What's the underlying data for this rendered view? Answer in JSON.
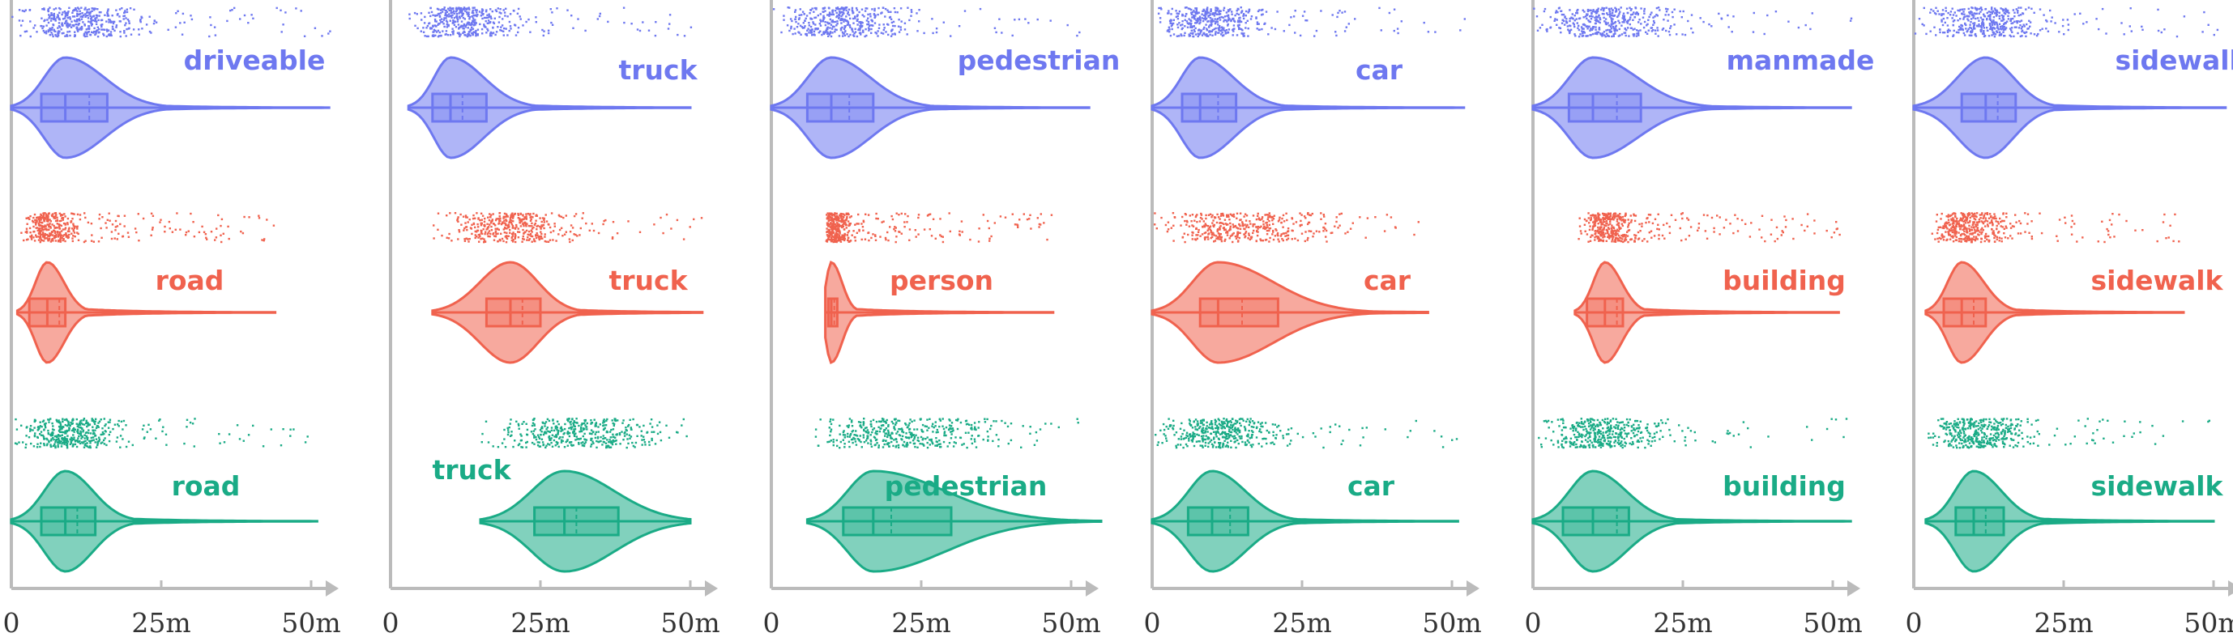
{
  "colors": {
    "row1": "#6e78f0",
    "row2": "#f0624e",
    "row3": "#1aab86",
    "axis": "#bbbbbb",
    "tick_text": "#333333"
  },
  "x_tick_labels": [
    "0",
    "25m",
    "50m"
  ],
  "chart_data": [
    {
      "type": "violin",
      "x_range": [
        0,
        50
      ],
      "x_ticks": [
        0,
        25,
        50
      ],
      "series": [
        {
          "name": "driveable",
          "min": 0,
          "q1": 5,
          "median": 9,
          "mean": 13,
          "q3": 16,
          "max": 53,
          "row": 1
        },
        {
          "name": "road",
          "min": 1,
          "q1": 3,
          "median": 6,
          "mean": 8,
          "q3": 9,
          "max": 44,
          "row": 2
        },
        {
          "name": "road",
          "min": 0,
          "q1": 5,
          "median": 9,
          "mean": 11,
          "q3": 14,
          "max": 51,
          "row": 3
        }
      ]
    },
    {
      "type": "violin",
      "x_range": [
        0,
        50
      ],
      "x_ticks": [
        0,
        25,
        50
      ],
      "series": [
        {
          "name": "truck",
          "min": 3,
          "q1": 7,
          "median": 10,
          "mean": 12,
          "q3": 16,
          "max": 50,
          "row": 1
        },
        {
          "name": "truck",
          "min": 7,
          "q1": 16,
          "median": 20,
          "mean": 22,
          "q3": 25,
          "max": 52,
          "row": 2
        },
        {
          "name": "truck",
          "min": 15,
          "q1": 24,
          "median": 29,
          "mean": 31,
          "q3": 38,
          "max": 50,
          "row": 3
        }
      ]
    },
    {
      "type": "violin",
      "x_range": [
        0,
        50
      ],
      "x_ticks": [
        0,
        25,
        50
      ],
      "series": [
        {
          "name": "pedestrian",
          "min": 0,
          "q1": 6,
          "median": 10,
          "mean": 13,
          "q3": 17,
          "max": 53,
          "row": 1
        },
        {
          "name": "person",
          "min": 9,
          "q1": 9.5,
          "median": 10,
          "mean": 10.5,
          "q3": 11,
          "max": 47,
          "row": 2
        },
        {
          "name": "pedestrian",
          "min": 6,
          "q1": 12,
          "median": 17,
          "mean": 20,
          "q3": 30,
          "max": 55,
          "row": 3
        }
      ]
    },
    {
      "type": "violin",
      "x_range": [
        0,
        50
      ],
      "x_ticks": [
        0,
        25,
        50
      ],
      "series": [
        {
          "name": "car",
          "min": 0,
          "q1": 5,
          "median": 8,
          "mean": 11,
          "q3": 14,
          "max": 52,
          "row": 1
        },
        {
          "name": "car",
          "min": 0,
          "q1": 8,
          "median": 11,
          "mean": 15,
          "q3": 21,
          "max": 46,
          "row": 2
        },
        {
          "name": "car",
          "min": 0,
          "q1": 6,
          "median": 10,
          "mean": 13,
          "q3": 16,
          "max": 51,
          "row": 3
        }
      ]
    },
    {
      "type": "violin",
      "x_range": [
        0,
        50
      ],
      "x_ticks": [
        0,
        25,
        50
      ],
      "series": [
        {
          "name": "manmade",
          "min": 0,
          "q1": 6,
          "median": 10,
          "mean": 14,
          "q3": 18,
          "max": 53,
          "row": 1
        },
        {
          "name": "building",
          "min": 7,
          "q1": 9,
          "median": 12,
          "mean": 14,
          "q3": 15,
          "max": 51,
          "row": 2
        },
        {
          "name": "building",
          "min": 0,
          "q1": 5,
          "median": 10,
          "mean": 14,
          "q3": 16,
          "max": 53,
          "row": 3
        }
      ]
    },
    {
      "type": "violin",
      "x_range": [
        0,
        50
      ],
      "x_ticks": [
        0,
        25,
        50
      ],
      "series": [
        {
          "name": "sidewalk",
          "min": 0,
          "q1": 8,
          "median": 12,
          "mean": 14,
          "q3": 17,
          "max": 52,
          "row": 1
        },
        {
          "name": "sidewalk",
          "min": 2,
          "q1": 5,
          "median": 8,
          "mean": 10,
          "q3": 12,
          "max": 45,
          "row": 2
        },
        {
          "name": "sidewalk",
          "min": 2,
          "q1": 7,
          "median": 10,
          "mean": 12,
          "q3": 15,
          "max": 50,
          "row": 3
        }
      ]
    }
  ]
}
